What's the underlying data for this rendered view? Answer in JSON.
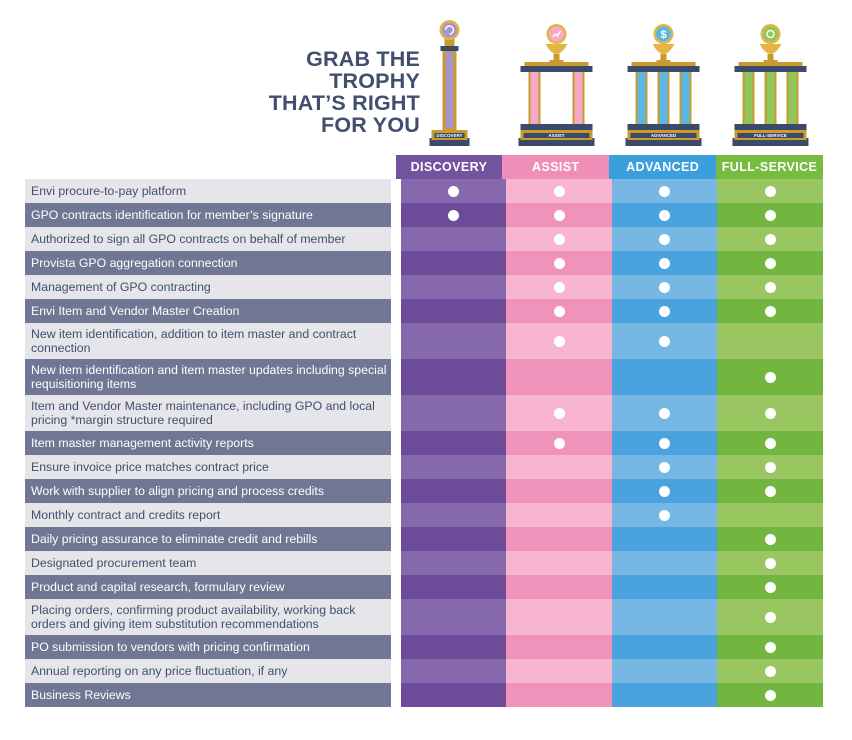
{
  "headline": {
    "lines": [
      "GRAB THE",
      "TROPHY",
      "THAT’S RIGHT",
      "FOR YOU"
    ],
    "color": "#414e6e"
  },
  "tiers": [
    {
      "key": "discovery",
      "name": "DISCOVERY",
      "trophy_label": "DISCOVERY",
      "icon": "refresh-cycle-icon",
      "colors": {
        "header": "#7352a0",
        "light": "#8669ad",
        "dark": "#6c4c98",
        "trophy": "#a794c9"
      }
    },
    {
      "key": "assist",
      "name": "ASSIST",
      "trophy_label": "ASSIST",
      "icon": "trend-line-icon",
      "colors": {
        "header": "#ef8fb8",
        "light": "#f7b5d0",
        "dark": "#ef93ba",
        "trophy": "#f5a9c7"
      }
    },
    {
      "key": "advanced",
      "name": "ADVANCED",
      "trophy_label": "ADVANCED",
      "icon": "dollar-sign-icon",
      "colors": {
        "header": "#3a9fdc",
        "light": "#77b7e3",
        "dark": "#4aa2de",
        "trophy": "#5ab6e6"
      }
    },
    {
      "key": "full_service",
      "name": "FULL-SERVICE",
      "trophy_label": "FULL-SERVICE",
      "icon": "handshake-icon",
      "colors": {
        "header": "#77bb41",
        "light": "#9ac662",
        "dark": "#72b63f",
        "trophy": "#8fc75a"
      }
    }
  ],
  "rows": [
    {
      "feature": "Envi procure-to-pay platform",
      "lines": 1,
      "included": [
        true,
        true,
        true,
        true
      ]
    },
    {
      "feature": "GPO contracts identification for member’s signature",
      "lines": 1,
      "included": [
        true,
        true,
        true,
        true
      ]
    },
    {
      "feature": "Authorized to sign all GPO contracts on behalf of member",
      "lines": 1,
      "included": [
        false,
        true,
        true,
        true
      ]
    },
    {
      "feature": "Provista GPO aggregation connection",
      "lines": 1,
      "included": [
        false,
        true,
        true,
        true
      ]
    },
    {
      "feature": "Management of GPO contracting",
      "lines": 1,
      "included": [
        false,
        true,
        true,
        true
      ]
    },
    {
      "feature": "Envi Item and Vendor Master Creation",
      "lines": 1,
      "included": [
        false,
        true,
        true,
        true
      ]
    },
    {
      "feature": "New item identification, addition to item master and contract connection",
      "lines": 2,
      "included": [
        false,
        true,
        true,
        false
      ]
    },
    {
      "feature": "New item identification and item master updates including special requisitioning items",
      "lines": 2,
      "included": [
        false,
        false,
        false,
        true
      ]
    },
    {
      "feature": "Item and Vendor Master maintenance, including GPO and local pricing *margin structure required",
      "lines": 2,
      "included": [
        false,
        true,
        true,
        true
      ]
    },
    {
      "feature": "Item master management activity reports",
      "lines": 1,
      "included": [
        false,
        true,
        true,
        true
      ]
    },
    {
      "feature": "Ensure invoice price matches contract price",
      "lines": 1,
      "included": [
        false,
        false,
        true,
        true
      ]
    },
    {
      "feature": "Work with supplier to align pricing and process credits",
      "lines": 1,
      "included": [
        false,
        false,
        true,
        true
      ]
    },
    {
      "feature": "Monthly contract and credits report",
      "lines": 1,
      "included": [
        false,
        false,
        true,
        false
      ]
    },
    {
      "feature": "Daily pricing assurance to eliminate credit and rebills",
      "lines": 1,
      "included": [
        false,
        false,
        false,
        true
      ]
    },
    {
      "feature": "Designated procurement team",
      "lines": 1,
      "included": [
        false,
        false,
        false,
        true
      ]
    },
    {
      "feature": "Product and capital research, formulary review",
      "lines": 1,
      "included": [
        false,
        false,
        false,
        true
      ]
    },
    {
      "feature": "Placing orders, confirming product availability, working back orders and giving item substitution recommendations",
      "lines": 2,
      "included": [
        false,
        false,
        false,
        true
      ]
    },
    {
      "feature": "PO submission to vendors with pricing confirmation",
      "lines": 1,
      "included": [
        false,
        false,
        false,
        true
      ]
    },
    {
      "feature": "Annual reporting on any price fluctuation, if any",
      "lines": 1,
      "included": [
        false,
        false,
        false,
        true
      ]
    },
    {
      "feature": "Business Reviews",
      "lines": 1,
      "included": [
        false,
        false,
        false,
        true
      ]
    }
  ]
}
